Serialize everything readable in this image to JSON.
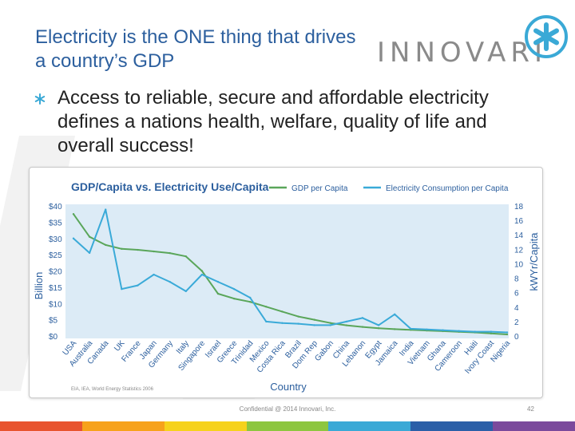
{
  "slide": {
    "title": "Electricity is the ONE thing that drives a country’s GDP",
    "bullet": "Access to reliable, secure and affordable electricity defines a nations health, welfare, quality of life and overall success!",
    "logo_text": "INNOVARI",
    "confidential": "Confidential @ 2014 Innovari, Inc.",
    "page_number": "42",
    "colors": {
      "title": "#2c5f9e",
      "logo_accent": "#3aa9d6",
      "footer": [
        "#e8542f",
        "#f7a21b",
        "#f6d21c",
        "#8dc63f",
        "#3aa9d6",
        "#2b5fa8",
        "#7b4a9c"
      ]
    }
  },
  "chart_data": {
    "type": "line",
    "title": "GDP/Capita vs. Electricity Use/Capita",
    "xlabel": "Country",
    "ylabel": "Billion",
    "y2label": "kWYr/Capita",
    "source": "EIA, IEA, World Energy Statistics 2006",
    "categories": [
      "USA",
      "Australia",
      "Canada",
      "UK",
      "France",
      "Japan",
      "Germany",
      "Italy",
      "Singapore",
      "Israel",
      "Greece",
      "Trinidad",
      "Mexico",
      "Costa Rica",
      "Brazil",
      "Dom Rep",
      "Gabon",
      "China",
      "Lebanon",
      "Egypt",
      "Jamaica",
      "India",
      "Vietnam",
      "Ghana",
      "Cameroon",
      "Haiti",
      "Ivory Coast",
      "Nigeria"
    ],
    "ylim": [
      0,
      40
    ],
    "y_ticks": [
      "$0",
      "$5",
      "$10",
      "$15",
      "$20",
      "$25",
      "$30",
      "$35",
      "$40"
    ],
    "y2lim": [
      0,
      18
    ],
    "y2_ticks": [
      "0",
      "2",
      "4",
      "6",
      "8",
      "10",
      "12",
      "14",
      "16",
      "18"
    ],
    "legend": "top-right",
    "series": [
      {
        "name": "GDP per Capita",
        "axis": "left",
        "color": "#5aa65a",
        "values": [
          37.5,
          30.5,
          28,
          26.8,
          26.5,
          26,
          25.5,
          24.5,
          20,
          13,
          11.5,
          10.5,
          9,
          7.5,
          6,
          5,
          4,
          3.3,
          2.8,
          2.4,
          2.1,
          1.9,
          1.7,
          1.5,
          1.3,
          1.1,
          0.8,
          0.5
        ]
      },
      {
        "name": "Electricity Consumption per Capita",
        "axis": "right",
        "color": "#3aaad8",
        "values": [
          13.5,
          11.5,
          17.5,
          6.5,
          7,
          8.5,
          7.5,
          6.2,
          8.5,
          7.5,
          6.5,
          5.3,
          2,
          1.8,
          1.7,
          1.5,
          1.5,
          2,
          2.5,
          1.5,
          3,
          1,
          0.9,
          0.8,
          0.7,
          0.6,
          0.6,
          0.5
        ]
      }
    ]
  }
}
